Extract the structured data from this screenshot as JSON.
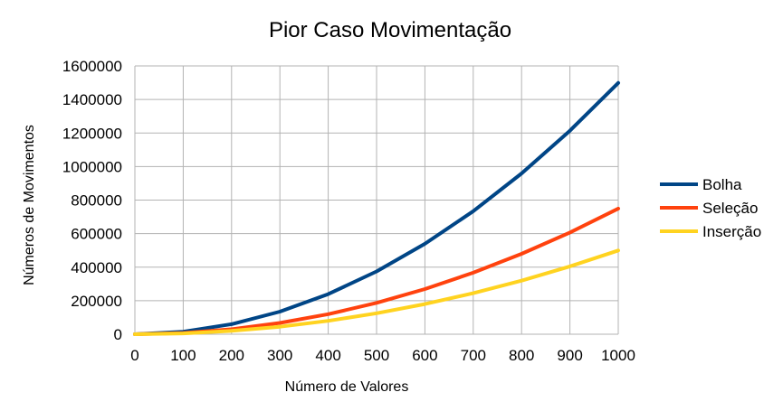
{
  "chart_data": {
    "type": "line",
    "title": "Pior Caso Movimentação",
    "xlabel": "Número de Valores",
    "ylabel": "Números de Movimentos",
    "x": [
      0,
      100,
      200,
      300,
      400,
      500,
      600,
      700,
      800,
      900,
      1000
    ],
    "xlim": [
      0,
      1000
    ],
    "ylim": [
      0,
      1600000
    ],
    "y_ticks": [
      0,
      200000,
      400000,
      600000,
      800000,
      1000000,
      1200000,
      1400000,
      1600000
    ],
    "grid": true,
    "legend_position": "right",
    "series": [
      {
        "name": "Bolha",
        "color": "#004586",
        "values": [
          0,
          14850,
          59700,
          134550,
          239400,
          374250,
          539100,
          733950,
          958800,
          1213650,
          1498500
        ]
      },
      {
        "name": "Seleção",
        "color": "#ff420e",
        "values": [
          0,
          7425,
          29850,
          67275,
          119700,
          187125,
          269550,
          366975,
          479400,
          606825,
          749250
        ]
      },
      {
        "name": "Inserção",
        "color": "#ffd320",
        "values": [
          0,
          4950,
          19900,
          44850,
          79800,
          124750,
          179700,
          244650,
          319600,
          404550,
          499500
        ]
      }
    ]
  }
}
